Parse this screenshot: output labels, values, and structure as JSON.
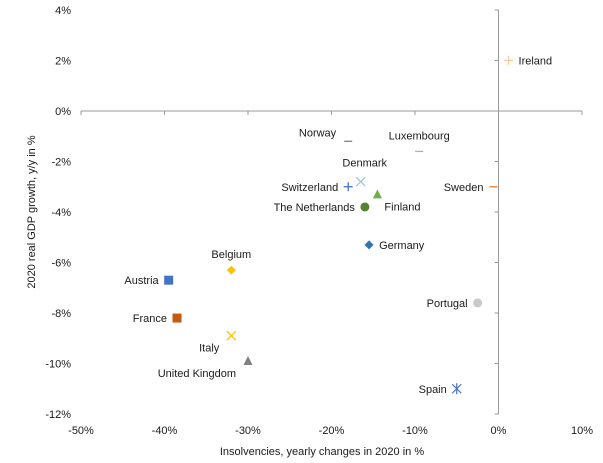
{
  "chart_data": {
    "type": "scatter",
    "xlabel": "Insolvencies, yearly changes in 2020 in %",
    "ylabel": "2020 real GDP growth, y/y in %",
    "xlim": [
      -50,
      10
    ],
    "ylim": [
      -12,
      4
    ],
    "xticks": [
      -50,
      -40,
      -30,
      -20,
      -10,
      0,
      10
    ],
    "yticks": [
      -12,
      -10,
      -8,
      -6,
      -4,
      -2,
      0,
      2,
      4
    ],
    "xtick_labels": [
      "-50%",
      "-40%",
      "-30%",
      "-20%",
      "-10%",
      "0%",
      "10%"
    ],
    "ytick_labels": [
      "-12%",
      "-10%",
      "-8%",
      "-6%",
      "-4%",
      "-2%",
      "0%",
      "2%",
      "4%"
    ],
    "grid": false,
    "legend": "none",
    "points": [
      {
        "name": "Ireland",
        "x": 1.2,
        "y": 2.0,
        "marker": "plus",
        "color": "#f7caa0",
        "label_side": "right"
      },
      {
        "name": "Norway",
        "x": -18.0,
        "y": -1.2,
        "marker": "dash",
        "color": "#7f7f7f",
        "label_side": "upleft"
      },
      {
        "name": "Luxembourg",
        "x": -9.5,
        "y": -1.6,
        "marker": "dash",
        "color": "#b0b0b0",
        "label_side": "up"
      },
      {
        "name": "Denmark",
        "x": -16.5,
        "y": -2.8,
        "marker": "x",
        "color": "#9dc3e6",
        "label_side": "upright"
      },
      {
        "name": "Switzerland",
        "x": -18.0,
        "y": -3.0,
        "marker": "plus",
        "color": "#4472c4",
        "label_side": "left"
      },
      {
        "name": "Sweden",
        "x": -0.6,
        "y": -3.0,
        "marker": "dash",
        "color": "#ed7d31",
        "label_side": "left"
      },
      {
        "name": "Finland",
        "x": -14.5,
        "y": -3.3,
        "marker": "triangle",
        "color": "#70ad47",
        "label_side": "belowright"
      },
      {
        "name": "The Netherlands",
        "x": -16.0,
        "y": -3.8,
        "marker": "circle",
        "color": "#548235",
        "label_side": "left"
      },
      {
        "name": "Germany",
        "x": -15.5,
        "y": -5.3,
        "marker": "diamond",
        "color": "#2e75b6",
        "label_side": "right"
      },
      {
        "name": "Belgium",
        "x": -32.0,
        "y": -6.3,
        "marker": "diamond",
        "color": "#ffc000",
        "label_side": "up"
      },
      {
        "name": "Austria",
        "x": -39.5,
        "y": -6.7,
        "marker": "square",
        "color": "#4472c4",
        "label_side": "left"
      },
      {
        "name": "France",
        "x": -38.5,
        "y": -8.2,
        "marker": "square",
        "color": "#c55a11",
        "label_side": "left"
      },
      {
        "name": "Portugal",
        "x": -2.5,
        "y": -7.6,
        "marker": "circle",
        "color": "#c9c9c9",
        "label_side": "left"
      },
      {
        "name": "Italy",
        "x": -32.0,
        "y": -8.9,
        "marker": "x",
        "color": "#ffc000",
        "label_side": "belowleft"
      },
      {
        "name": "United Kingdom",
        "x": -30.0,
        "y": -9.9,
        "marker": "triangle",
        "color": "#7f7f7f",
        "label_side": "belowleft"
      },
      {
        "name": "Spain",
        "x": -5.0,
        "y": -11.0,
        "marker": "asterisk",
        "color": "#4472c4",
        "label_side": "left"
      }
    ]
  }
}
